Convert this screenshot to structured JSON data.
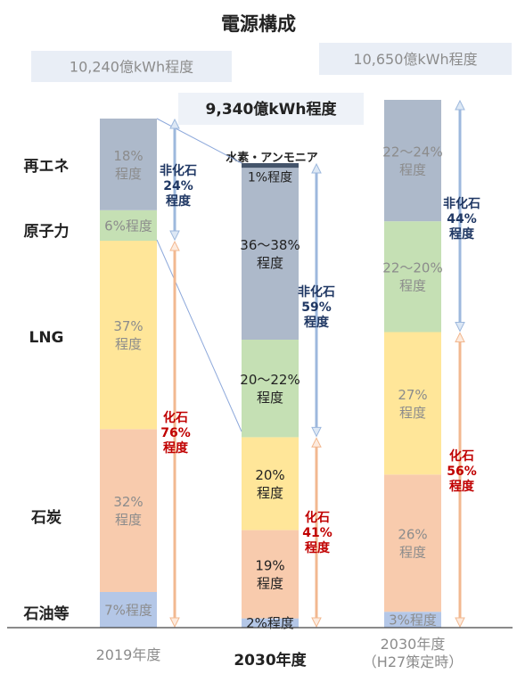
{
  "chart_data": {
    "type": "bar",
    "stacked": true,
    "title": "電源構成",
    "categories": [
      "2019年度",
      "2030年度",
      "2030年度(H27策定時)"
    ],
    "category_lines": [
      [
        "2019年度"
      ],
      [
        "2030年度"
      ],
      [
        "2030年度",
        "（H27策定時）"
      ]
    ],
    "totals": [
      "10,240億kWh程度",
      "9,340億kWh程度",
      "10,650億kWh程度"
    ],
    "row_labels": [
      "再エネ",
      "原子力",
      "LNG",
      "石炭",
      "石油等"
    ],
    "series": [
      {
        "name": "石油等",
        "color": "#b4c7e7",
        "values": [
          7,
          2,
          3
        ],
        "labels": [
          "7%程度",
          "2%程度",
          "3%程度"
        ]
      },
      {
        "name": "石炭",
        "color": "#f8cbad",
        "values": [
          32,
          19,
          26
        ],
        "labels": [
          [
            "32%",
            "程度"
          ],
          [
            "19%",
            "程度"
          ],
          [
            "26%",
            "程度"
          ]
        ]
      },
      {
        "name": "LNG",
        "color": "#ffe699",
        "values": [
          37,
          20,
          27
        ],
        "labels": [
          [
            "37%",
            "程度"
          ],
          [
            "20%",
            "程度"
          ],
          [
            "27%",
            "程度"
          ]
        ]
      },
      {
        "name": "原子力",
        "color": "#c5e0b4",
        "values": [
          6,
          21,
          21
        ],
        "labels": [
          "6%程度",
          [
            "20～22%",
            "程度"
          ],
          [
            "22～20%",
            "程度"
          ]
        ]
      },
      {
        "name": "再エネ",
        "color": "#adb9ca",
        "values": [
          18,
          37,
          23
        ],
        "labels": [
          [
            "18%",
            "程度"
          ],
          [
            "36～38%",
            "程度"
          ],
          [
            "22～24%",
            "程度"
          ]
        ]
      },
      {
        "name": "水素・アンモニア",
        "color": "#44546a",
        "values": [
          0,
          1,
          0
        ],
        "labels": [
          "",
          "1%程度",
          ""
        ]
      }
    ],
    "brackets": [
      {
        "bar": 0,
        "kind": "非化石",
        "lines": [
          "非化石",
          "24%",
          "程度"
        ]
      },
      {
        "bar": 0,
        "kind": "化石",
        "lines": [
          "化石",
          "76%",
          "程度"
        ]
      },
      {
        "bar": 1,
        "kind": "非化石",
        "lines": [
          "非化石",
          "59%",
          "程度"
        ]
      },
      {
        "bar": 1,
        "kind": "化石",
        "lines": [
          "化石",
          "41%",
          "程度"
        ]
      },
      {
        "bar": 2,
        "kind": "非化石",
        "lines": [
          "非化石",
          "44%",
          "程度"
        ]
      },
      {
        "bar": 2,
        "kind": "化石",
        "lines": [
          "化石",
          "56%",
          "程度"
        ]
      }
    ],
    "annotation": "水素・アンモニア",
    "colors": {
      "non_fossil": "#203864",
      "fossil": "#c00000",
      "muted_text": "#8c8c8c",
      "dark_text": "#222222"
    },
    "ylim": [
      0,
      100
    ]
  }
}
